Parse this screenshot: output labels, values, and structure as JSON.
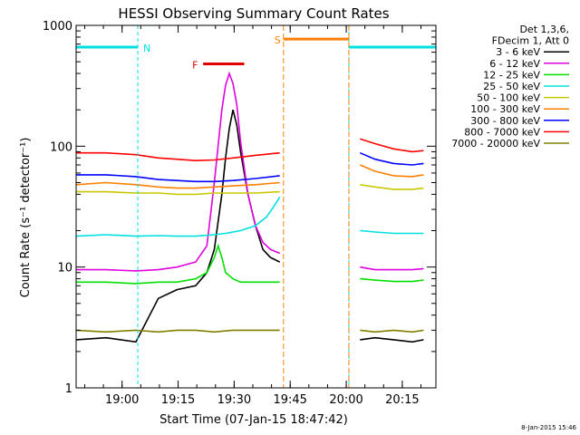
{
  "chart_data": {
    "type": "line",
    "title": "HESSI Observing Summary Count Rates",
    "xlabel": "Start Time (07-Jan-15 18:47:42)",
    "ylabel": "Count Rate (s⁻¹ detector⁻¹)",
    "y_scale": "log",
    "ylim": [
      1,
      1000
    ],
    "xlim_minutes_after_start": [
      0,
      96.3
    ],
    "x_tick_labels": [
      "19:00",
      "19:15",
      "19:30",
      "19:45",
      "20:00",
      "20:15"
    ],
    "x_tick_minutes": [
      12.3,
      27.3,
      42.3,
      57.3,
      72.3,
      87.3
    ],
    "y_tick_labels": [
      "1",
      "10",
      "100",
      "1000"
    ],
    "legend": {
      "placement": "right",
      "header": [
        "Det 1,3,6,",
        "FDecim 1, Att 0"
      ]
    },
    "series": [
      {
        "name": "3 - 6 keV",
        "color": "#000000",
        "x": [
          0,
          8,
          16,
          22,
          27,
          32,
          35,
          37,
          39,
          40,
          41,
          42,
          43,
          44,
          46,
          48,
          50,
          52,
          54.5,
          73,
          76,
          80,
          85,
          90,
          93
        ],
        "y": [
          2.5,
          2.6,
          2.4,
          5.5,
          6.5,
          7,
          9,
          14,
          40,
          80,
          140,
          200,
          150,
          90,
          40,
          22,
          14,
          12,
          11,
          null,
          2.5,
          2.6,
          2.5,
          2.4,
          2.5
        ]
      },
      {
        "name": "6 - 12 keV",
        "color": "#e000e0",
        "x": [
          0,
          8,
          16,
          22,
          27,
          32,
          35,
          37,
          39,
          40,
          41,
          42,
          43,
          44,
          46,
          48,
          50,
          52,
          54.5,
          73,
          76,
          80,
          85,
          90,
          93
        ],
        "y": [
          9.5,
          9.5,
          9.3,
          9.5,
          10,
          11,
          15,
          50,
          200,
          320,
          400,
          330,
          220,
          110,
          40,
          22,
          16,
          14,
          13,
          null,
          10,
          9.5,
          9.5,
          9.5,
          9.7
        ]
      },
      {
        "name": "12 - 25 keV",
        "color": "#00e000",
        "x": [
          0,
          8,
          16,
          22,
          27,
          32,
          35,
          37,
          38,
          39,
          40,
          42,
          44,
          48,
          52,
          54.5,
          73,
          76,
          80,
          85,
          90,
          93
        ],
        "y": [
          7.5,
          7.5,
          7.3,
          7.5,
          7.5,
          8,
          9,
          12,
          15,
          12,
          9,
          8,
          7.5,
          7.5,
          7.5,
          7.5,
          null,
          8,
          7.8,
          7.6,
          7.6,
          7.8
        ]
      },
      {
        "name": "25 - 50 keV",
        "color": "#00e0e0",
        "x": [
          0,
          8,
          16,
          22,
          27,
          32,
          37,
          40,
          44,
          48,
          51,
          53,
          54.5,
          73,
          76,
          80,
          85,
          90,
          93
        ],
        "y": [
          18,
          18.5,
          18,
          18.2,
          18,
          18,
          18.5,
          19,
          20,
          22,
          26,
          32,
          38,
          null,
          20,
          19.5,
          19,
          19,
          19
        ]
      },
      {
        "name": "50 - 100 keV",
        "color": "#c8c800",
        "x": [
          0,
          8,
          16,
          22,
          27,
          32,
          37,
          42,
          48,
          54.5,
          73,
          76,
          80,
          85,
          90,
          93
        ],
        "y": [
          42,
          42,
          41,
          41,
          40,
          40,
          41,
          41,
          41,
          42,
          null,
          48,
          46,
          44,
          44,
          45
        ]
      },
      {
        "name": "100 - 300 keV",
        "color": "#ff8000",
        "x": [
          0,
          8,
          16,
          22,
          27,
          32,
          37,
          42,
          48,
          54.5,
          73,
          76,
          80,
          85,
          90,
          93
        ],
        "y": [
          48,
          50,
          48,
          46,
          45,
          45,
          46,
          47,
          48,
          50,
          null,
          70,
          62,
          57,
          56,
          58
        ]
      },
      {
        "name": "300 - 800 keV",
        "color": "#0000ff",
        "x": [
          0,
          8,
          16,
          22,
          27,
          32,
          37,
          42,
          48,
          54.5,
          73,
          76,
          80,
          85,
          90,
          93
        ],
        "y": [
          58,
          58,
          56,
          53,
          52,
          51,
          51,
          52,
          54,
          57,
          null,
          88,
          78,
          72,
          70,
          72
        ]
      },
      {
        "name": "800 - 7000 keV",
        "color": "#ff0000",
        "x": [
          0,
          8,
          16,
          22,
          27,
          32,
          37,
          42,
          48,
          54.5,
          73,
          76,
          80,
          85,
          90,
          93
        ],
        "y": [
          88,
          88,
          85,
          80,
          78,
          76,
          77,
          80,
          84,
          88,
          null,
          115,
          105,
          95,
          90,
          92
        ]
      },
      {
        "name": "7000 - 20000 keV",
        "color": "#808000",
        "x": [
          0,
          8,
          16,
          22,
          27,
          32,
          37,
          42,
          48,
          54.5,
          73,
          76,
          80,
          85,
          90,
          93
        ],
        "y": [
          3.0,
          2.9,
          3.0,
          2.9,
          3.0,
          3.0,
          2.9,
          3.0,
          3.0,
          3.0,
          null,
          3.0,
          2.9,
          3.0,
          2.9,
          3.0
        ]
      }
    ],
    "annotations": [
      {
        "label": "N",
        "color": "#00e0e0",
        "kind": "night",
        "intervals_minutes": [
          [
            0,
            16.5
          ],
          [
            73,
            96.3
          ]
        ],
        "level": 660
      },
      {
        "label": "S",
        "color": "#ff8000",
        "kind": "saa",
        "intervals_minutes": [
          [
            55.5,
            73
          ]
        ],
        "level": 770
      },
      {
        "label": "F",
        "color": "#e00000",
        "kind": "flare",
        "intervals_minutes": [
          [
            34,
            45
          ]
        ],
        "level": 480
      }
    ]
  },
  "footer": {
    "timestamp": "8-Jan-2015 15:46"
  }
}
